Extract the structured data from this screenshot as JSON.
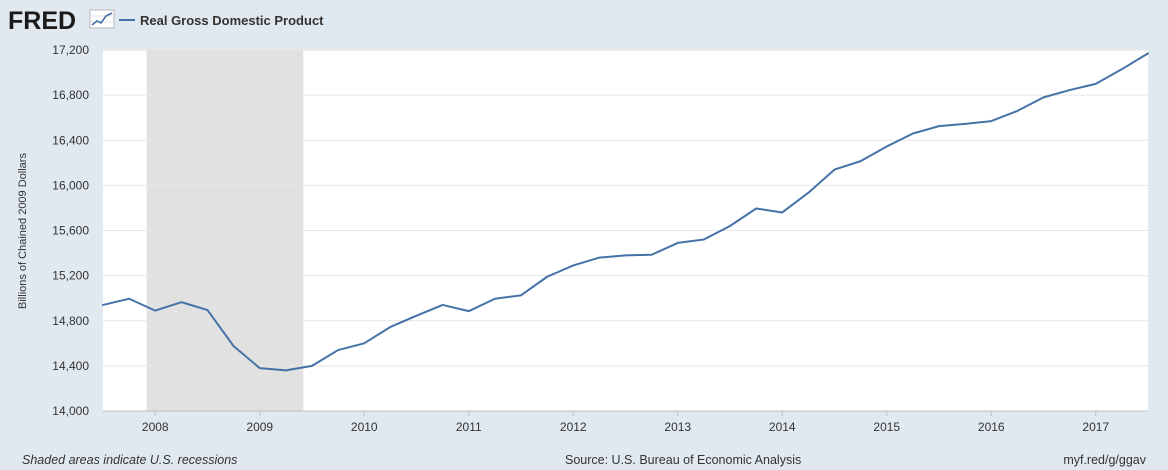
{
  "header": {
    "logo_text": "FRED",
    "logo_icon": "line-chart-icon",
    "legend_label": "Real Gross Domestic Product"
  },
  "footer": {
    "note": "Shaded areas indicate U.S. recessions",
    "source": "Source: U.S. Bureau of Economic Analysis",
    "link": "myf.red/g/ggav"
  },
  "colors": {
    "page_background": "#e1e9f0",
    "plot_background": "#ffffff",
    "series_line": "#4572a7",
    "recession_shade": "#e1e1e1",
    "gridline": "#e6e6e6"
  },
  "chart_data": {
    "type": "line",
    "title": "",
    "xlabel": "",
    "ylabel": "Billions of Chained 2009 Dollars",
    "ylim": [
      14000,
      17200
    ],
    "xlim": [
      "2007-07-01",
      "2017-07-01"
    ],
    "y_ticks": [
      14000,
      14400,
      14800,
      15200,
      15600,
      16000,
      16400,
      16800,
      17200
    ],
    "y_tick_labels": [
      "14,000",
      "14,400",
      "14,800",
      "15,200",
      "15,600",
      "16,000",
      "16,400",
      "16,800",
      "17,200"
    ],
    "x_ticks": [
      "2008-01-01",
      "2009-01-01",
      "2010-01-01",
      "2011-01-01",
      "2012-01-01",
      "2013-01-01",
      "2014-01-01",
      "2015-01-01",
      "2016-01-01",
      "2017-01-01"
    ],
    "x_tick_labels": [
      "2008",
      "2009",
      "2010",
      "2011",
      "2012",
      "2013",
      "2014",
      "2015",
      "2016",
      "2017"
    ],
    "grid": true,
    "legend_placement": "top-left",
    "recessions": [
      {
        "start": "2007-12-01",
        "end": "2009-06-01"
      }
    ],
    "series": [
      {
        "name": "Real Gross Domestic Product",
        "x": [
          "2007-07-01",
          "2007-10-01",
          "2008-01-01",
          "2008-04-01",
          "2008-07-01",
          "2008-10-01",
          "2009-01-01",
          "2009-04-01",
          "2009-07-01",
          "2009-10-01",
          "2010-01-01",
          "2010-04-01",
          "2010-07-01",
          "2010-10-01",
          "2011-01-01",
          "2011-04-01",
          "2011-07-01",
          "2011-10-01",
          "2012-01-01",
          "2012-04-01",
          "2012-07-01",
          "2012-10-01",
          "2013-01-01",
          "2013-04-01",
          "2013-07-01",
          "2013-10-01",
          "2014-01-01",
          "2014-04-01",
          "2014-07-01",
          "2014-10-01",
          "2015-01-01",
          "2015-04-01",
          "2015-07-01",
          "2015-10-01",
          "2016-01-01",
          "2016-04-01",
          "2016-07-01",
          "2016-10-01",
          "2017-01-01",
          "2017-04-01",
          "2017-07-01"
        ],
        "values": [
          14940,
          14995,
          14890,
          14965,
          14895,
          14575,
          14380,
          14360,
          14400,
          14540,
          14600,
          14745,
          14845,
          14940,
          14885,
          14995,
          15025,
          15190,
          15290,
          15360,
          15380,
          15385,
          15490,
          15520,
          15640,
          15795,
          15760,
          15935,
          16140,
          16215,
          16345,
          16460,
          16525,
          16545,
          16570,
          16660,
          16780,
          16845,
          16900,
          17030,
          17170
        ]
      }
    ]
  }
}
